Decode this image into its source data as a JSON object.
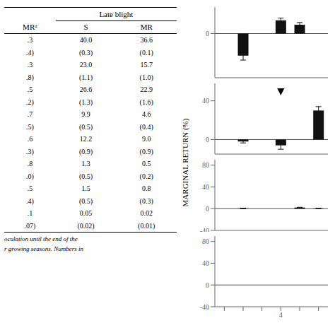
{
  "chart_data": [
    {
      "type": "table",
      "title": "Late blight",
      "columns": [
        "MRᵈ",
        "S",
        "MR"
      ],
      "rows": [
        [
          ".3",
          "40.0",
          "36.6"
        ],
        [
          ".4)",
          "(0.3)",
          "(0.1)"
        ],
        [
          ".3",
          "23.0",
          "15.7"
        ],
        [
          ".8)",
          "(1.1)",
          "(1.0)"
        ],
        [
          ".5",
          "26.6",
          "22.9"
        ],
        [
          ".2)",
          "(1.3)",
          "(1.6)"
        ],
        [
          ".7",
          "9.9",
          "4.6"
        ],
        [
          ".5)",
          "(0.5)",
          "(0.4)"
        ],
        [
          ".6",
          "12.2",
          "9.0"
        ],
        [
          ".3)",
          "(0.9)",
          "(0.9)"
        ],
        [
          ".8",
          "1.3",
          "0.5"
        ],
        [
          ".0)",
          "(0.5)",
          "(0.2)"
        ],
        [
          ".5",
          "1.5",
          "0.8"
        ],
        [
          ".4)",
          "(0.5)",
          "(0.3)"
        ],
        [
          ".1",
          "0.05",
          "0.02"
        ],
        [
          ".07)",
          "(0.02)",
          "(0.01)"
        ]
      ],
      "annotations": [
        "oculation until the end of the",
        "r growing seasons. Numbers in"
      ]
    },
    {
      "type": "bar",
      "ylabel": "MARGINAL RETURN (%)",
      "categories": [
        null,
        null,
        null,
        null,
        null,
        null
      ],
      "values": [
        0,
        -5,
        0,
        3,
        2,
        0
      ],
      "errors": [
        1,
        1,
        0.5,
        0.5,
        0.5,
        0.5
      ],
      "color": "#111111",
      "ylim": [
        -10,
        6
      ],
      "yticks": [
        0
      ],
      "tick_labels": "y"
    },
    {
      "type": "bar",
      "categories": [
        null,
        null,
        null,
        null,
        null,
        null
      ],
      "values": [
        0,
        -2,
        0,
        -6,
        0,
        30
      ],
      "errors": [
        0.5,
        1.5,
        0.5,
        4,
        0.5,
        4
      ],
      "color": "#111111",
      "ylim": [
        -15,
        58
      ],
      "yticks": [
        0,
        40
      ],
      "tick_labels": "y",
      "annotations": [
        {
          "x": 3,
          "y": 49.24,
          "marker": "triangle_down"
        }
      ]
    },
    {
      "type": "bar",
      "categories": [
        null,
        null,
        null,
        null,
        null,
        null
      ],
      "values": [
        0,
        0.5,
        0,
        0,
        2,
        0.5
      ],
      "errors": [
        0.3,
        0.5,
        0.3,
        0.3,
        0.5,
        0.3
      ],
      "color": "#111111",
      "ylim": [
        -40,
        90
      ],
      "yticks": [
        -40,
        0,
        40,
        80
      ],
      "tick_labels": "y"
    },
    {
      "type": "bar",
      "categories": [
        null,
        null,
        null,
        "4",
        null,
        null
      ],
      "values": [
        0,
        0,
        0,
        0,
        0,
        0
      ],
      "errors": [
        0.3,
        0.3,
        0.3,
        0.3,
        0.3,
        0.3
      ],
      "color": "#111111",
      "ylim": [
        -40,
        90
      ],
      "yticks": [
        -40,
        0,
        40,
        80
      ],
      "tick_labels": true
    }
  ]
}
